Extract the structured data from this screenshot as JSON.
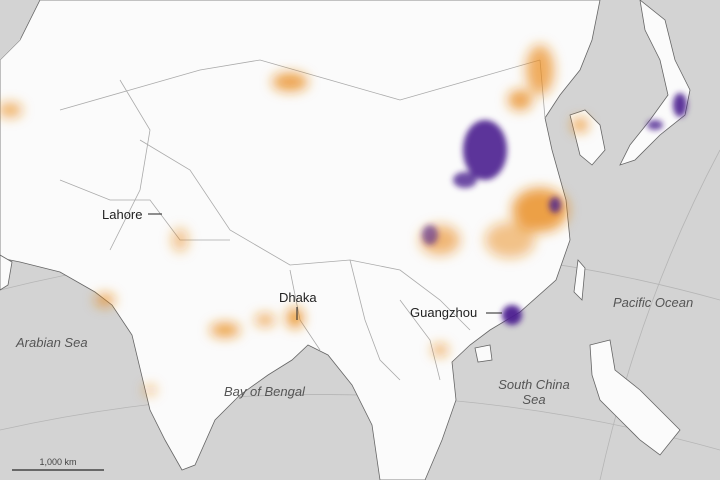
{
  "labels": {
    "lahore": "Lahore",
    "dhaka": "Dhaka",
    "guangzhou": "Guangzhou",
    "arabian_sea": "Arabian Sea",
    "bay_of_bengal": "Bay of Bengal",
    "pacific_ocean": "Pacific Ocean",
    "south_china_sea": [
      "South China",
      "Sea"
    ]
  },
  "scale_bar": "1,000 km"
}
